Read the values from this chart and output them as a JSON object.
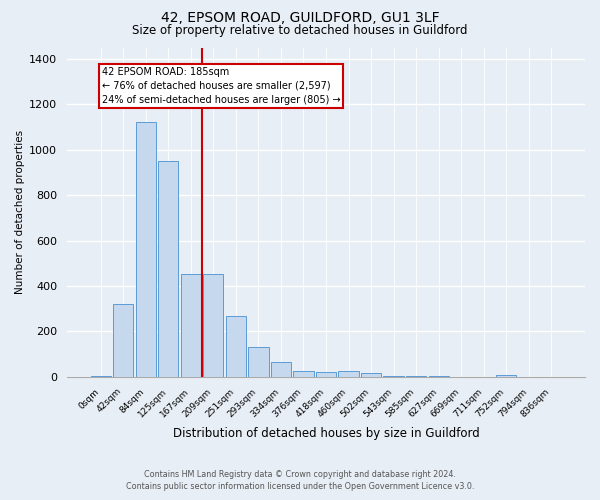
{
  "title": "42, EPSOM ROAD, GUILDFORD, GU1 3LF",
  "subtitle": "Size of property relative to detached houses in Guildford",
  "xlabel": "Distribution of detached houses by size in Guildford",
  "ylabel": "Number of detached properties",
  "footnote1": "Contains HM Land Registry data © Crown copyright and database right 2024.",
  "footnote2": "Contains public sector information licensed under the Open Government Licence v3.0.",
  "categories": [
    "0sqm",
    "42sqm",
    "84sqm",
    "125sqm",
    "167sqm",
    "209sqm",
    "251sqm",
    "293sqm",
    "334sqm",
    "376sqm",
    "418sqm",
    "460sqm",
    "502sqm",
    "543sqm",
    "585sqm",
    "627sqm",
    "669sqm",
    "711sqm",
    "752sqm",
    "794sqm",
    "836sqm"
  ],
  "values": [
    5,
    320,
    1120,
    950,
    455,
    455,
    270,
    130,
    65,
    25,
    20,
    25,
    18,
    5,
    3,
    2,
    1,
    0,
    10,
    0,
    0
  ],
  "bar_color": "#c5d8ee",
  "bar_edge_color": "#5b9bd5",
  "red_line_x": 4.5,
  "annotation_line1": "42 EPSOM ROAD: 185sqm",
  "annotation_line2": "← 76% of detached houses are smaller (2,597)",
  "annotation_line3": "24% of semi-detached houses are larger (805) →",
  "annotation_box_facecolor": "#ffffff",
  "annotation_box_edgecolor": "#cc0000",
  "ylim_max": 1450,
  "fig_bg": "#e8eef5",
  "grid_color": "#d0d8e4"
}
